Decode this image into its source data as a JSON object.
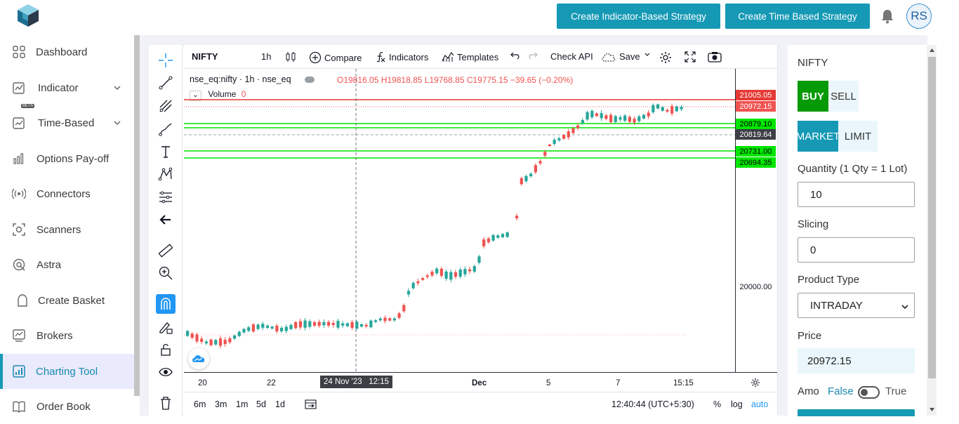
{
  "header": {
    "btn_indicator_strategy": "Create Indicator-Based Strategy",
    "btn_time_strategy": "Create Time Based Strategy",
    "avatar_initials": "RS",
    "accent": "#1599b5"
  },
  "sidebar": {
    "items": [
      {
        "label": "Dashboard",
        "icon": "dashboard-grid-icon"
      },
      {
        "label": "Indicator",
        "icon": "indicator-chart-icon"
      },
      {
        "label": "Time-Based",
        "icon": "time-based-icon",
        "badge": "BETA"
      },
      {
        "label": "Options Pay-off",
        "icon": "bar-chart-icon"
      },
      {
        "label": "Connectors",
        "icon": "broadcast-icon"
      },
      {
        "label": "Scanners",
        "icon": "scanner-icon"
      },
      {
        "label": "Astra",
        "icon": "astra-icon"
      },
      {
        "label": "Create Basket",
        "icon": "basket-icon"
      },
      {
        "label": "Brokers",
        "icon": "brokers-icon"
      },
      {
        "label": "Charting Tool",
        "icon": "charting-icon",
        "active": true
      },
      {
        "label": "Order Book",
        "icon": "book-icon"
      }
    ]
  },
  "chart": {
    "symbol": "NIFTY",
    "interval": "1h",
    "compare": "Compare",
    "indicators": "Indicators",
    "templates": "Templates",
    "check_api": "Check API",
    "save": "Save",
    "legend_symbol": "nse_eq:nifty · 1h · nse_eq",
    "ohlc": "O19816.05  H19818.85  L19768.85  C19775.15  −39.65 (−0.20%)",
    "volume_label": "Volume",
    "volume_value": "0",
    "price_labels": {
      "p1": "21005.05",
      "p2": "20972.15",
      "p3": "20879.10",
      "p4": "20819.64",
      "p5": "20731.00",
      "p6": "20694.35",
      "p7": "20000.00"
    },
    "time_labels": [
      "20",
      "22",
      "Dec",
      "5",
      "7",
      "15:15"
    ],
    "crosshair_time": "24 Nov '23   12:15",
    "ranges": [
      "6m",
      "3m",
      "1m",
      "5d",
      "1d"
    ],
    "clock": "12:40:44 (UTC+5:30)",
    "pct": "%",
    "log": "log",
    "auto": "auto"
  },
  "order_panel": {
    "symbol": "NIFTY",
    "buy": "BUY",
    "sell": "SELL",
    "market": "MARKET",
    "limit": "LIMIT",
    "quantity_label": "Quantity (1 Qty = 1 Lot)",
    "quantity_value": "10",
    "slicing_label": "Slicing",
    "slicing_value": "0",
    "product_label": "Product Type",
    "product_value": "INTRADAY",
    "price_label": "Price",
    "price_value": "20972.15",
    "amo_label": "Amo",
    "amo_false": "False",
    "amo_true": "True"
  }
}
